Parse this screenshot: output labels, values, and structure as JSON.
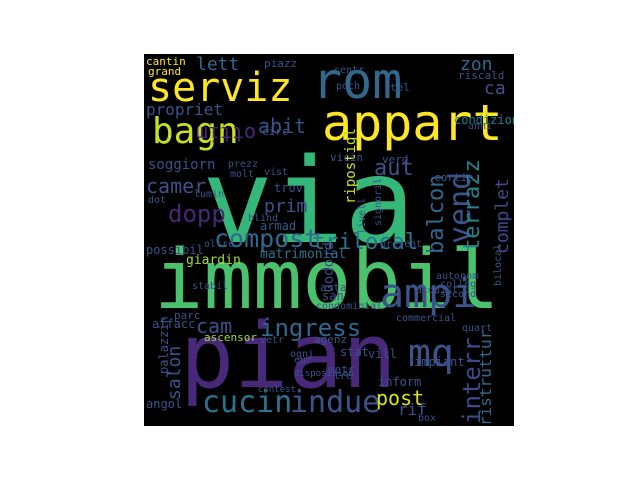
{
  "words": [
    {
      "text": "via",
      "color": "#35b779"
    },
    {
      "text": "immobil",
      "color": "#4ac16d"
    },
    {
      "text": "pian",
      "color": "#482878"
    },
    {
      "text": "rom",
      "color": "#31688e"
    },
    {
      "text": "appart",
      "color": "#fde725"
    },
    {
      "text": "serviz",
      "color": "#fde725"
    },
    {
      "text": "bagn",
      "color": "#c8e020"
    },
    {
      "text": "ampi",
      "color": "#3b528b"
    },
    {
      "text": "vend",
      "color": "#3b528b"
    },
    {
      "text": "compost",
      "color": "#31688e"
    },
    {
      "text": "cucin",
      "color": "#2c728e"
    },
    {
      "text": "indue",
      "color": "#3b528b"
    },
    {
      "text": "mq",
      "color": "#3b528b"
    },
    {
      "text": "ingress",
      "color": "#31688e"
    },
    {
      "text": "interr",
      "color": "#3e4a89"
    },
    {
      "text": "terrazz",
      "color": "#26828e"
    },
    {
      "text": "balcon",
      "color": "#31688e"
    },
    {
      "text": "dopp",
      "color": "#482878"
    },
    {
      "text": "camer",
      "color": "#3b528b"
    },
    {
      "text": "trilocal",
      "color": "#2c728e"
    },
    {
      "text": "abit",
      "color": "#3b528b"
    },
    {
      "text": "aut",
      "color": "#3b528b"
    },
    {
      "text": "complet",
      "color": "#3e4a89"
    },
    {
      "text": "post",
      "color": "#d8e219"
    },
    {
      "text": "salon",
      "color": "#3b528b"
    },
    {
      "text": "cam",
      "color": "#3b528b"
    },
    {
      "text": "ottim",
      "color": "#482878"
    },
    {
      "text": "propriet",
      "color": "#3b528b"
    },
    {
      "text": "lett",
      "color": "#31688e"
    },
    {
      "text": "zon",
      "color": "#31688e"
    },
    {
      "text": "ca",
      "color": "#3b528b"
    },
    {
      "text": "prim",
      "color": "#3b528b"
    },
    {
      "text": "ristruttur",
      "color": "#31688e"
    },
    {
      "text": "soggiorn",
      "color": "#3b528b"
    },
    {
      "text": "ripostigl",
      "color": "#c8e020"
    },
    {
      "text": "propon",
      "color": "#3e4a89"
    },
    {
      "text": "giardin",
      "color": "#a0da39"
    },
    {
      "text": "matrimonial",
      "color": "#2c728e"
    },
    {
      "text": "condizion",
      "color": "#26828e"
    },
    {
      "text": "riscald",
      "color": "#3b528b"
    },
    {
      "text": "trov",
      "color": "#3b528b"
    },
    {
      "text": "armad",
      "color": "#3b528b"
    },
    {
      "text": "possibil",
      "color": "#3b528b"
    },
    {
      "text": "san",
      "color": "#3b528b"
    },
    {
      "text": "asta",
      "color": "#3b528b"
    },
    {
      "text": "parc",
      "color": "#3b528b"
    },
    {
      "text": "ascensor",
      "color": "#a0da39"
    },
    {
      "text": "agenz",
      "color": "#3b528b"
    },
    {
      "text": "stat",
      "color": "#3b528b"
    },
    {
      "text": "metr",
      "color": "#3b528b"
    },
    {
      "text": "inform",
      "color": "#3b528b"
    },
    {
      "text": "impiant",
      "color": "#3b528b"
    },
    {
      "text": "vill",
      "color": "#3b528b"
    },
    {
      "text": "rif",
      "color": "#3b528b"
    },
    {
      "text": "affacc",
      "color": "#3b528b"
    },
    {
      "text": "palazzin",
      "color": "#3b528b"
    },
    {
      "text": "angol",
      "color": "#3b528b"
    },
    {
      "text": "cantin",
      "color": "#fde725"
    },
    {
      "text": "grand",
      "color": "#fde725"
    },
    {
      "text": "piazz",
      "color": "#3b528b"
    },
    {
      "text": "centr",
      "color": "#3b528b"
    },
    {
      "text": "poch",
      "color": "#3b528b"
    },
    {
      "text": "tel",
      "color": "#3b528b"
    },
    {
      "text": "cortin",
      "color": "#3b528b"
    },
    {
      "text": "circ",
      "color": "#3b528b"
    },
    {
      "text": "vicin",
      "color": "#3b528b"
    },
    {
      "text": "verd",
      "color": "#3b528b"
    },
    {
      "text": "lumin",
      "color": "#3b528b"
    },
    {
      "text": "dot",
      "color": "#3b528b"
    },
    {
      "text": "blind",
      "color": "#3b528b"
    },
    {
      "text": "acquist",
      "color": "#3b528b"
    },
    {
      "text": "autonom",
      "color": "#3b528b"
    },
    {
      "text": "colleg",
      "color": "#3b528b"
    },
    {
      "text": "second",
      "color": "#3b528b"
    },
    {
      "text": "bilocal",
      "color": "#3b528b"
    },
    {
      "text": "quart",
      "color": "#3b528b"
    },
    {
      "text": "commercial",
      "color": "#3b528b"
    },
    {
      "text": "condominial",
      "color": "#3b528b"
    },
    {
      "text": "livell",
      "color": "#3b528b"
    },
    {
      "text": "signoril",
      "color": "#3b528b"
    },
    {
      "text": "present",
      "color": "#3b528b"
    },
    {
      "text": "box",
      "color": "#3b528b"
    },
    {
      "text": "tre",
      "color": "#3b528b"
    },
    {
      "text": "eur",
      "color": "#3b528b"
    },
    {
      "text": "ogni",
      "color": "#3b528b"
    },
    {
      "text": "vetr",
      "color": "#3b528b"
    },
    {
      "text": "contest",
      "color": "#3b528b"
    },
    {
      "text": "stabil",
      "color": "#3b528b"
    },
    {
      "text": "oltre",
      "color": "#3b528b"
    },
    {
      "text": "disposizion",
      "color": "#3b528b"
    },
    {
      "text": "anni",
      "color": "#3b528b"
    },
    {
      "text": "prezz",
      "color": "#3b528b"
    },
    {
      "text": "molt",
      "color": "#3b528b"
    },
    {
      "text": "vist",
      "color": "#3b528b"
    }
  ]
}
